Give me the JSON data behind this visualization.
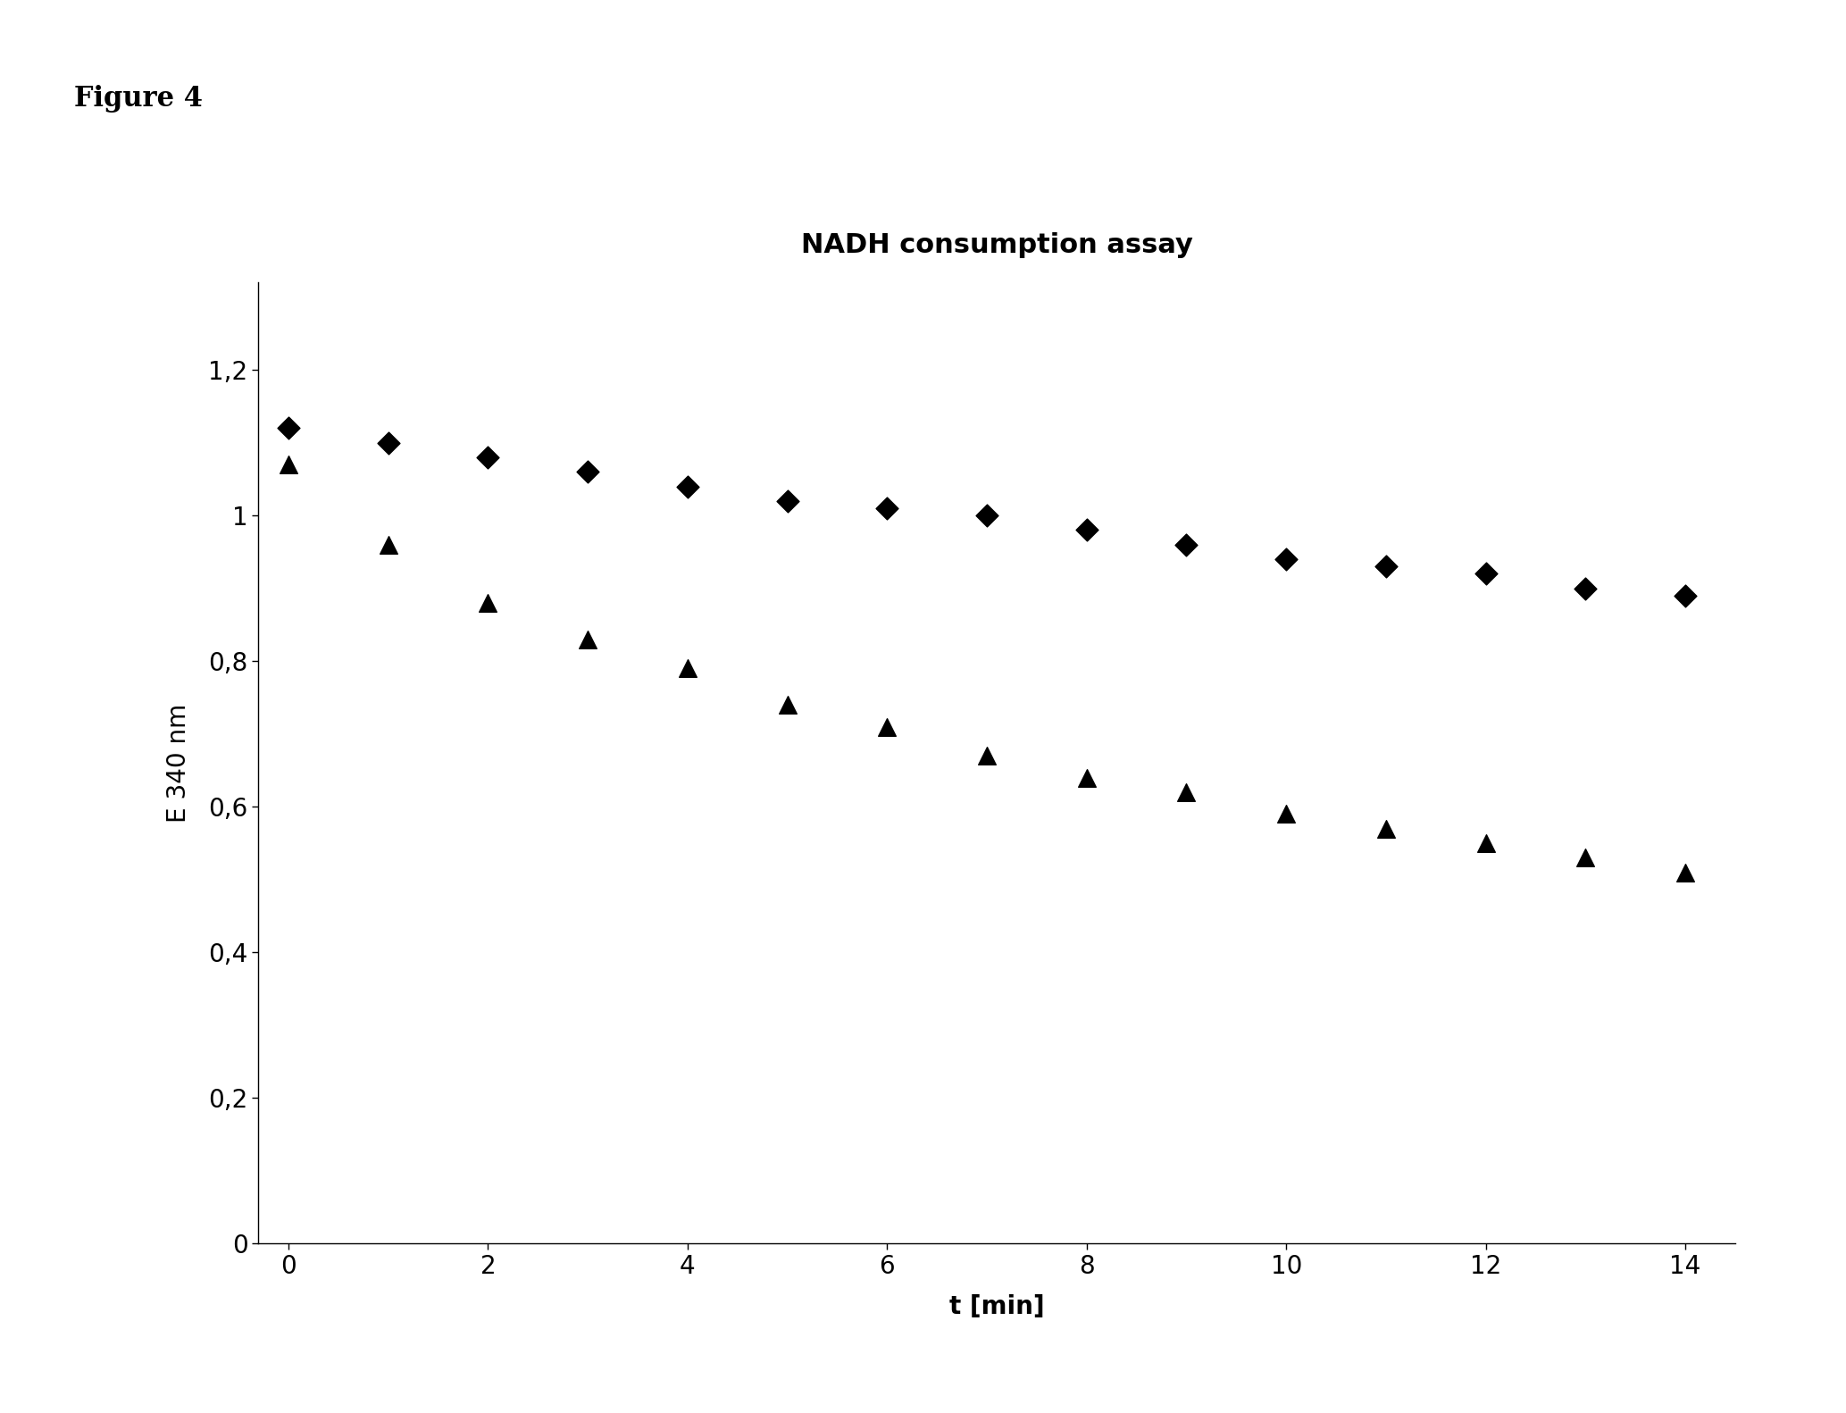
{
  "title": "NADH consumption assay",
  "figure_label": "Figure 4",
  "xlabel": "t [min]",
  "ylabel": "E 340 nm",
  "xlim": [
    -0.3,
    14.5
  ],
  "ylim": [
    0,
    1.32
  ],
  "yticks": [
    0,
    0.2,
    0.4,
    0.6,
    0.8,
    1.0,
    1.2
  ],
  "ytick_labels": [
    "0",
    "0,2",
    "0,4",
    "0,6",
    "0,8",
    "1",
    "1,2"
  ],
  "xticks": [
    0,
    2,
    4,
    6,
    8,
    10,
    12,
    14
  ],
  "diamond_x": [
    0,
    1,
    2,
    3,
    4,
    5,
    6,
    7,
    8,
    9,
    10,
    11,
    12,
    13,
    14
  ],
  "diamond_y": [
    1.12,
    1.1,
    1.08,
    1.06,
    1.04,
    1.02,
    1.01,
    1.0,
    0.98,
    0.96,
    0.94,
    0.93,
    0.92,
    0.9,
    0.89
  ],
  "triangle_x": [
    0,
    1,
    2,
    3,
    4,
    5,
    6,
    7,
    8,
    9,
    10,
    11,
    12,
    13,
    14
  ],
  "triangle_y": [
    1.07,
    0.96,
    0.88,
    0.83,
    0.79,
    0.74,
    0.71,
    0.67,
    0.64,
    0.62,
    0.59,
    0.57,
    0.55,
    0.53,
    0.51
  ],
  "marker_color": "#000000",
  "diamond_marker_size": 160,
  "triangle_marker_size": 200,
  "background_color": "#ffffff",
  "title_fontsize": 22,
  "label_fontsize": 20,
  "tick_fontsize": 20,
  "figure_label_fontsize": 22
}
